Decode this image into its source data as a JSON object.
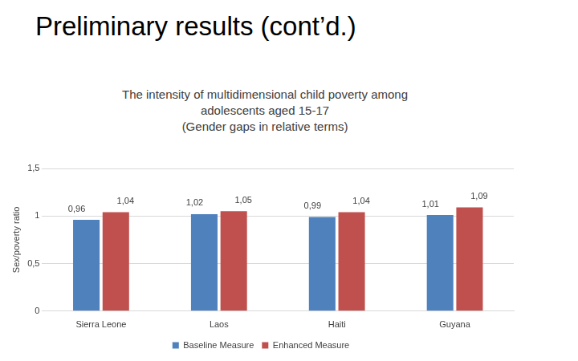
{
  "slide_title": "Preliminary results (cont’d.)",
  "chart_data": {
    "type": "bar",
    "title": "The intensity of multidimensional child poverty among adolescents aged 15-17",
    "subtitle": "(Gender gaps in relative terms)",
    "y_label": "Sex/poverty ratio",
    "categories": [
      "Sierra Leone",
      "Laos",
      "Haiti",
      "Guyana"
    ],
    "series": [
      {
        "name": "Baseline Measure",
        "color": "#4f81bd",
        "values": [
          0.96,
          1.02,
          0.99,
          1.01
        ],
        "value_labels": [
          "0,96",
          "1,02",
          "0,99",
          "1,01"
        ]
      },
      {
        "name": "Enhanced Measure",
        "color": "#c0504d",
        "values": [
          1.04,
          1.05,
          1.04,
          1.09
        ],
        "value_labels": [
          "1,04",
          "1,05",
          "1,04",
          "1,09"
        ]
      }
    ],
    "ylim": [
      0,
      1.5
    ],
    "yticks": [
      0,
      {
        "value": 0.5,
        "label": "0,5"
      },
      1,
      {
        "value": 1.5,
        "label": "1,5"
      }
    ],
    "grid": true,
    "legend": "bottom",
    "data_labels": true
  }
}
